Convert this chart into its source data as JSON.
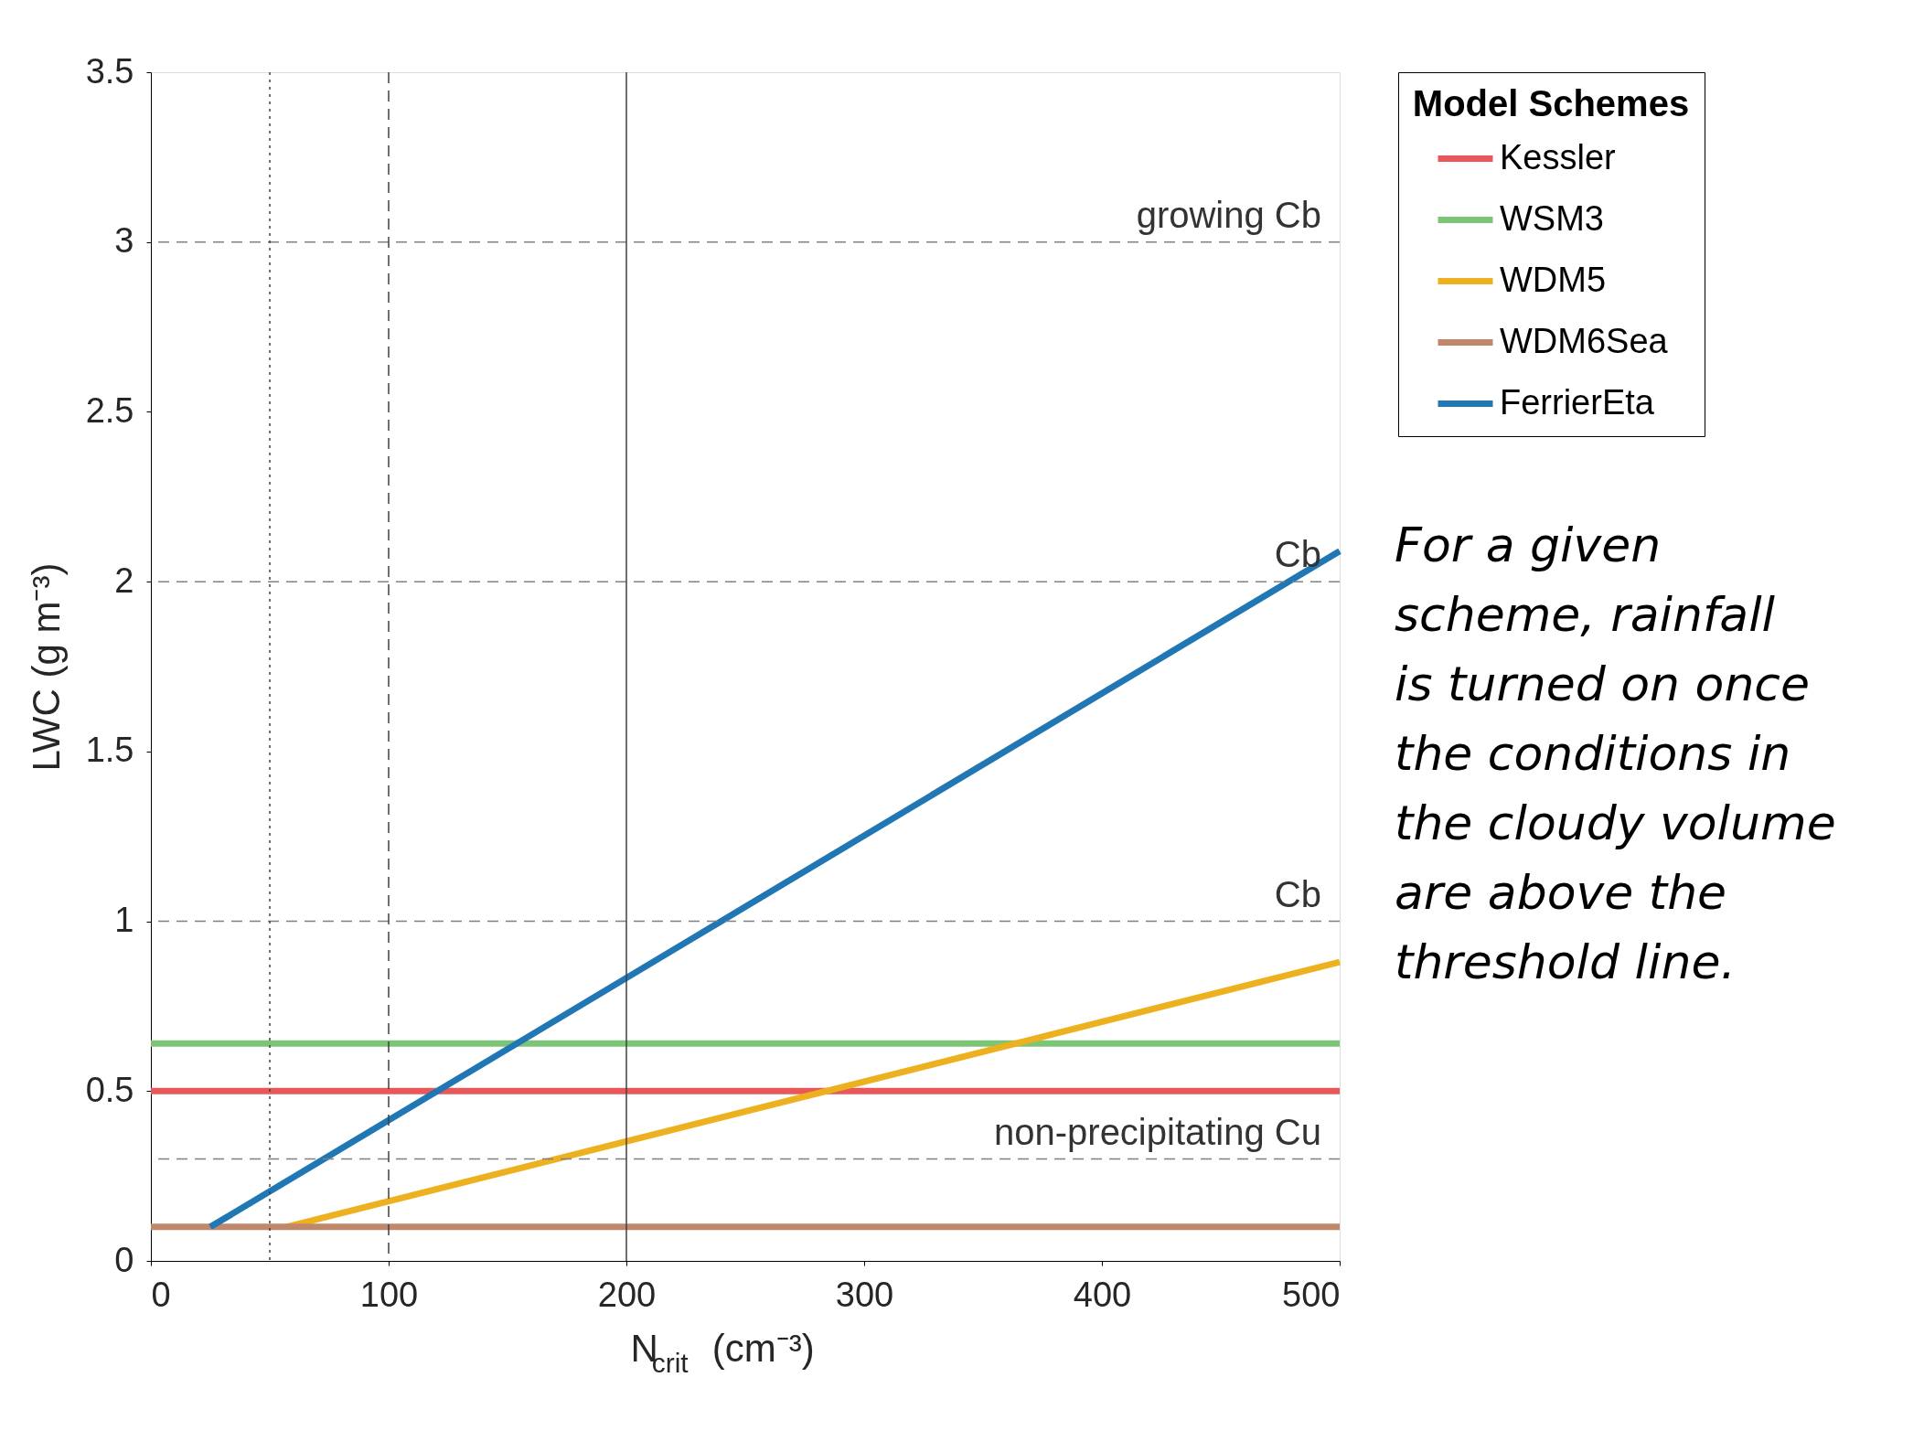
{
  "chart_data": {
    "type": "line",
    "xlabel": "N$_{crit}$ (cm⁻³)",
    "ylabel": "LWC (g m⁻³)",
    "legend_title": "Model Schemes",
    "xlim": [
      0,
      500
    ],
    "ylim": [
      0,
      3.5
    ],
    "xticks": [
      0,
      100,
      200,
      300,
      400,
      500
    ],
    "yticks": [
      0,
      0.5,
      1,
      1.5,
      2,
      2.5,
      3,
      3.5
    ],
    "grid": false,
    "legend": "right",
    "line_style": "solid",
    "marker": "none",
    "series": [
      {
        "name": "Kessler",
        "color": "#e8575a",
        "x": [
          0,
          500
        ],
        "values": [
          0.5,
          0.5
        ]
      },
      {
        "name": "WSM3",
        "color": "#7cc576",
        "x": [
          0,
          500
        ],
        "values": [
          0.64,
          0.64
        ]
      },
      {
        "name": "WDM5",
        "color": "#edb120",
        "x": [
          57,
          500
        ],
        "values": [
          0.1,
          0.88
        ]
      },
      {
        "name": "WDM6Sea",
        "color": "#c0876a",
        "x": [
          0,
          500
        ],
        "values": [
          0.1,
          0.1
        ]
      },
      {
        "name": "FerrierEta",
        "color": "#2077b4",
        "x": [
          25,
          500
        ],
        "values": [
          0.1,
          2.09
        ]
      }
    ],
    "ref_lines": [
      {
        "axis": "y",
        "value": 3,
        "label": "growing Cb",
        "line_style": "dashed",
        "color": "#808080"
      },
      {
        "axis": "y",
        "value": 2,
        "label": "Cb",
        "line_style": "dashed",
        "color": "#808080"
      },
      {
        "axis": "y",
        "value": 1,
        "label": "Cb",
        "line_style": "dashed",
        "color": "#808080"
      },
      {
        "axis": "y",
        "value": 0.3,
        "label": "non-precipitating Cu",
        "line_style": "dashed",
        "color": "#808080"
      },
      {
        "axis": "x",
        "value": 50,
        "line_style": "dotted",
        "color": "#404040"
      },
      {
        "axis": "x",
        "value": 100,
        "line_style": "dashed",
        "color": "#404040"
      },
      {
        "axis": "x",
        "value": 200,
        "line_style": "solid",
        "color": "#404040"
      }
    ],
    "annotations": [
      "For a given scheme, rainfall is turned on once the conditions in the cloudy volume are above the threshold line."
    ]
  }
}
